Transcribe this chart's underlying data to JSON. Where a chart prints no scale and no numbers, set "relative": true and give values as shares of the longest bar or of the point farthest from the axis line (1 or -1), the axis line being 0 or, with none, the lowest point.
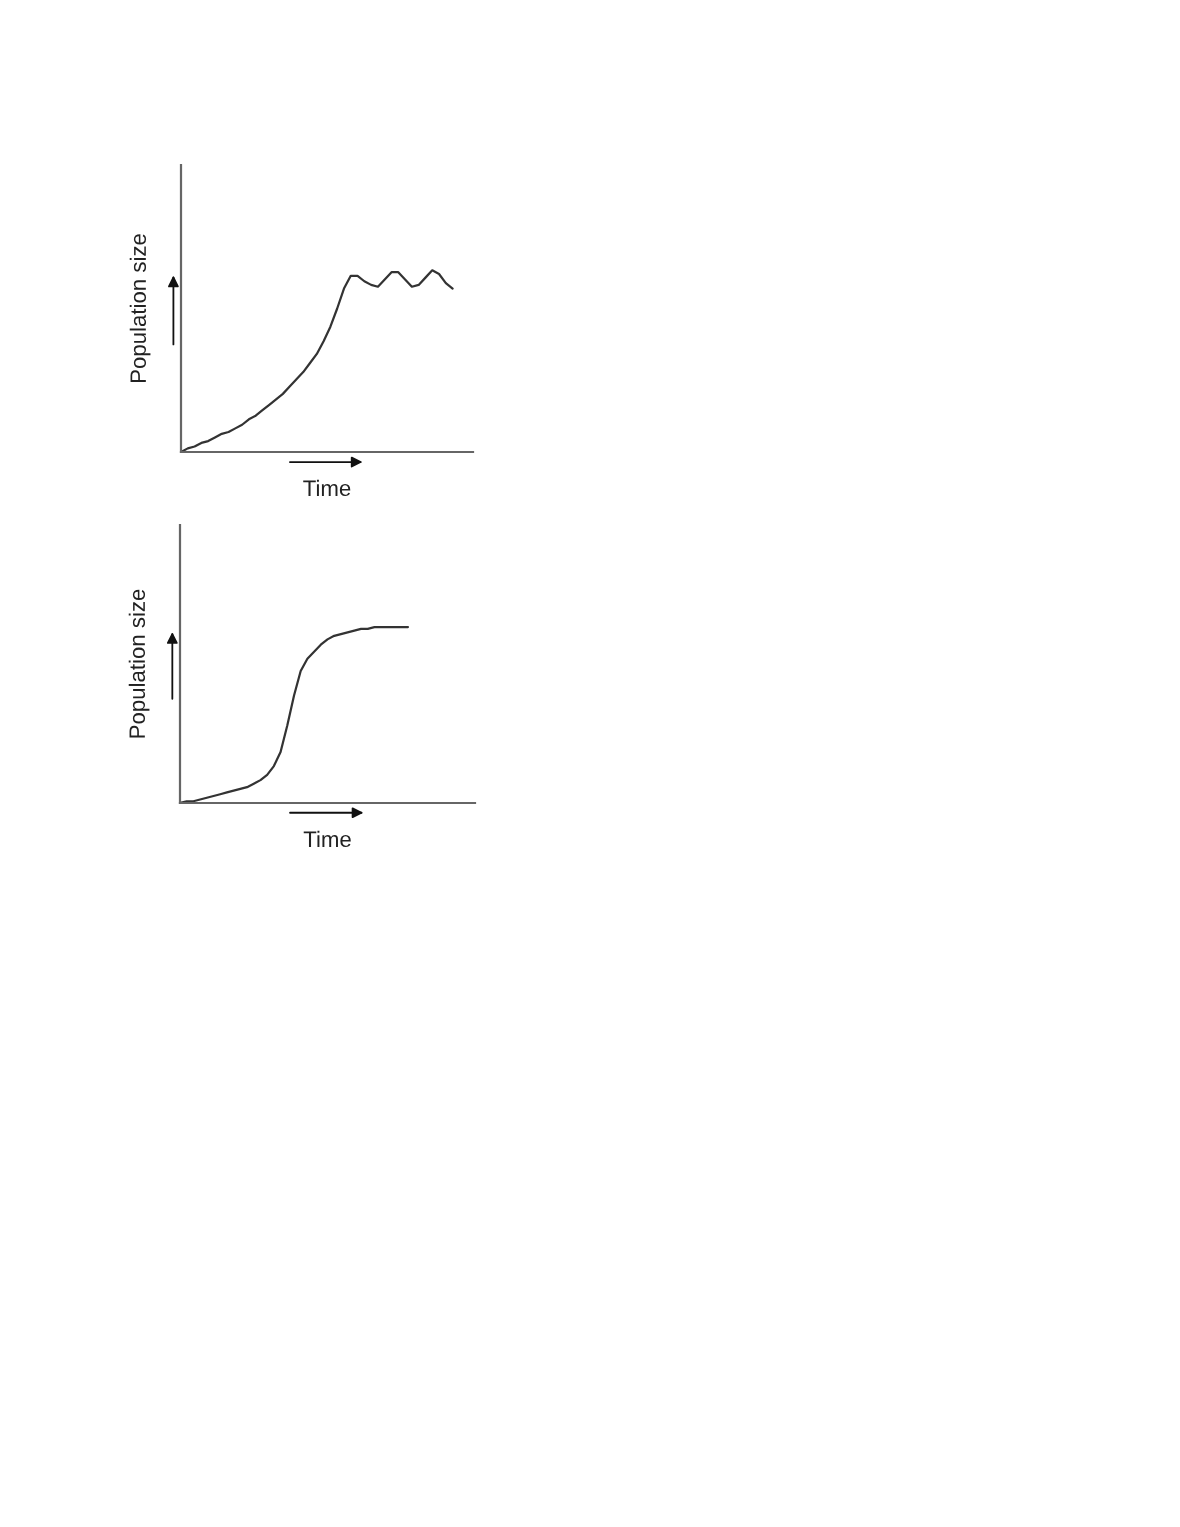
{
  "chart_data": [
    {
      "type": "line",
      "relative": true,
      "xlabel": "Time",
      "ylabel": "Population size",
      "categories": [
        null,
        null,
        null,
        null,
        null,
        null,
        null,
        null,
        null,
        null,
        null,
        null,
        null,
        null,
        null,
        null,
        null,
        null,
        null,
        null,
        null,
        null,
        null,
        null,
        null,
        null,
        null,
        null,
        null,
        null,
        null,
        null,
        null,
        null,
        null,
        null,
        null,
        null,
        null,
        null,
        null,
        null,
        null,
        null
      ],
      "series": [
        {
          "color": "#333333",
          "values": [
            0,
            0.02,
            0.03,
            0.05,
            0.06,
            0.08,
            0.1,
            0.11,
            0.13,
            0.15,
            0.18,
            0.2,
            0.23,
            0.26,
            0.29,
            0.32,
            0.36,
            0.4,
            0.44,
            0.49,
            0.54,
            0.61,
            0.69,
            0.79,
            0.9,
            0.97,
            0.97,
            0.94,
            0.92,
            0.91,
            0.95,
            0.99,
            0.99,
            0.95,
            0.91,
            0.92,
            0.96,
            1.0,
            0.98,
            0.93,
            0.9,
            null,
            null,
            null
          ]
        }
      ]
    },
    {
      "type": "line",
      "relative": true,
      "xlabel": "Time",
      "ylabel": "Population size",
      "categories": [
        null,
        null,
        null,
        null,
        null,
        null,
        null,
        null,
        null,
        null,
        null,
        null,
        null,
        null,
        null,
        null,
        null,
        null,
        null,
        null,
        null,
        null,
        null,
        null,
        null,
        null,
        null,
        null,
        null,
        null,
        null,
        null,
        null,
        null,
        null,
        null,
        null,
        null,
        null,
        null,
        null,
        null,
        null,
        null,
        null
      ],
      "series": [
        {
          "color": "#333333",
          "values": [
            0,
            0.01,
            0.01,
            0.02,
            0.03,
            0.04,
            0.05,
            0.06,
            0.07,
            0.08,
            0.09,
            0.11,
            0.13,
            0.16,
            0.21,
            0.29,
            0.44,
            0.61,
            0.75,
            0.82,
            0.86,
            0.9,
            0.93,
            0.95,
            0.96,
            0.97,
            0.98,
            0.99,
            0.99,
            1.0,
            1.0,
            1.0,
            1.0,
            1.0,
            1.0,
            null,
            null,
            null,
            null,
            null,
            null,
            null,
            null,
            null,
            null
          ]
        }
      ]
    }
  ]
}
